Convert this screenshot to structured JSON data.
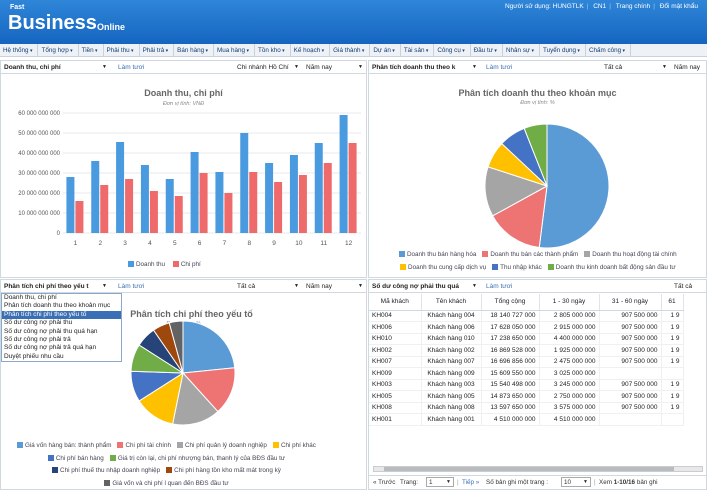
{
  "header": {
    "logo_small": "Fast",
    "logo_big": "Business",
    "logo_online": "Online",
    "user_label": "Người sử dụng: HUNGTLK",
    "branch": "CN1",
    "home": "Trang chính",
    "change_password": "Đổi mật khẩu"
  },
  "menu": [
    "Hệ thống",
    "Tổng hợp",
    "Tiền",
    "Phải thu",
    "Phải trả",
    "Bán hàng",
    "Mua hàng",
    "Tồn kho",
    "Kế hoạch",
    "Giá thành",
    "Dự án",
    "Tài sản",
    "Công cụ",
    "Đầu tư",
    "Nhân sự",
    "Tuyển dụng",
    "Chấm công"
  ],
  "panel1": {
    "select": "Doanh thu, chi phí",
    "refresh": "Làm tươi",
    "branch": "Chi nhánh Hồ Chí",
    "period": "Năm nay"
  },
  "panel2": {
    "select": "Phân tích doanh thu theo k",
    "refresh": "Làm tươi",
    "filter": "Tất cả",
    "period": "Năm nay"
  },
  "panel3": {
    "select": "Phân tích chi phí theo yếu t",
    "refresh": "Làm tươi",
    "filter": "Tất cả",
    "period": "Năm nay"
  },
  "panel4": {
    "select": "Số dư công nợ phải thu quá",
    "refresh": "Làm tươi",
    "filter": "Tất cả"
  },
  "dropdown": {
    "items": [
      "Doanh thu, chi phí",
      "Phân tích doanh thu theo khoản mục",
      "Phân tích chi phí theo yếu tố",
      "Số dư công nợ phải thu",
      "Số dư công nợ phải thu quá hạn",
      "Số dư công nợ phải trả",
      "Số dư công nợ phải trả quá hạn",
      "Duyệt phiếu nhu cầu"
    ],
    "active_index": 2
  },
  "chart_data": [
    {
      "type": "bar",
      "title": "Doanh thu, chi phí",
      "subtitle": "Đơn vị tính: VNĐ",
      "categories": [
        "1",
        "2",
        "3",
        "4",
        "5",
        "6",
        "7",
        "8",
        "9",
        "10",
        "11",
        "12"
      ],
      "ylim": [
        0,
        60000000000
      ],
      "yticks": [
        "0",
        "10 000 000 000",
        "20 000 000 000",
        "30 000 000 000",
        "40 000 000 000",
        "50 000 000 000",
        "60 000 000 000"
      ],
      "series": [
        {
          "name": "Doanh thu",
          "color": "#4a9ae0",
          "values": [
            28000000000,
            36000000000,
            45500000000,
            34000000000,
            27000000000,
            40500000000,
            30500000000,
            50000000000,
            35000000000,
            39000000000,
            45000000000,
            59000000000
          ]
        },
        {
          "name": "Chi phí",
          "color": "#ef6b6b",
          "values": [
            16000000000,
            24000000000,
            27000000000,
            21000000000,
            18500000000,
            30000000000,
            20000000000,
            30500000000,
            25500000000,
            29000000000,
            35000000000,
            45000000000
          ]
        }
      ],
      "legend": "bottom",
      "grid": true
    },
    {
      "type": "pie",
      "title": "Phân tích doanh thu theo khoản mục",
      "subtitle": "Đơn vị tính: %",
      "labels": [
        "Doanh thu bán hàng hóa",
        "Doanh thu bán các thành phẩm",
        "Doanh thu hoạt động tài chính",
        "Doanh thu cung cấp dịch vụ",
        "Thu nhập khác",
        "Doanh thu kinh doanh bất động sản đầu tư"
      ],
      "values": [
        52,
        15,
        13,
        7,
        7,
        6
      ],
      "colors": [
        "#5b9bd5",
        "#ed7472",
        "#a5a5a5",
        "#ffc000",
        "#4472c4",
        "#70ad47"
      ],
      "legend": "bottom"
    },
    {
      "type": "pie",
      "title": "Phân tích chi phí theo yếu tố",
      "subtitle": "Đơn vị tính: %",
      "labels": [
        "Giá vốn hàng bán: thành phẩm",
        "Chi phí tài chính",
        "Chi phí quản lý doanh nghiệp",
        "Chi phí khác",
        "Chi phí bán hàng",
        "Giá trị còn lại, chi phí nhượng bán, thanh lý của BĐS đầu tư",
        "Chi phí thuế thu nhập doanh nghiệp",
        "Chi phí hàng tồn kho mất mát trong kỳ",
        "Giá vốn và chi phí l quan đến BĐS đầu tư"
      ],
      "values": [
        22,
        14,
        14,
        12,
        9,
        8,
        6,
        5,
        4
      ],
      "colors": [
        "#5b9bd5",
        "#ed7472",
        "#a5a5a5",
        "#ffc000",
        "#4472c4",
        "#70ad47",
        "#264478",
        "#9e480e",
        "#636363"
      ],
      "legend": "bottom"
    }
  ],
  "table": {
    "headers": [
      "Mã khách",
      "Tên khách",
      "Tổng cộng",
      "1 - 30 ngày",
      "31 - 60 ngày",
      "61"
    ],
    "rows": [
      [
        "KH004",
        "Khách hàng 004",
        "18 140 727 000",
        "2 805 000 000",
        "907 500 000",
        "1 9"
      ],
      [
        "KH006",
        "Khách hàng 006",
        "17 628 050 000",
        "2 915 000 000",
        "907 500 000",
        "1 9"
      ],
      [
        "KH010",
        "Khách hàng 010",
        "17 238 650 000",
        "4 400 000 000",
        "907 500 000",
        "1 9"
      ],
      [
        "KH002",
        "Khách hàng 002",
        "16 869 528 000",
        "1 925 000 000",
        "907 500 000",
        "1 9"
      ],
      [
        "KH007",
        "Khách hàng 007",
        "16 696 856 000",
        "2 475 000 000",
        "907 500 000",
        "1 9"
      ],
      [
        "KH009",
        "Khách hàng 009",
        "15 609 550 000",
        "3 025 000 000",
        "",
        ""
      ],
      [
        "KH003",
        "Khách hàng 003",
        "15 540 498 000",
        "3 245 000 000",
        "907 500 000",
        "1 9"
      ],
      [
        "KH005",
        "Khách hàng 005",
        "14 873 650 000",
        "2 750 000 000",
        "907 500 000",
        "1 9"
      ],
      [
        "KH008",
        "Khách hàng 008",
        "13 597 650 000",
        "3 575 000 000",
        "907 500 000",
        "1 9"
      ],
      [
        "KH001",
        "Khách hàng 001",
        "4 510 000 000",
        "4 510 000 000",
        "",
        ""
      ]
    ]
  },
  "pager": {
    "prev": "« Trước",
    "page_label": "Trang:",
    "page": "1",
    "next": "Tiếp »",
    "per_page_label": "Số bản ghi một trang :",
    "per_page": "10",
    "range_label": "Xem",
    "range": "1-10/16",
    "range_suffix": "bản ghi"
  }
}
